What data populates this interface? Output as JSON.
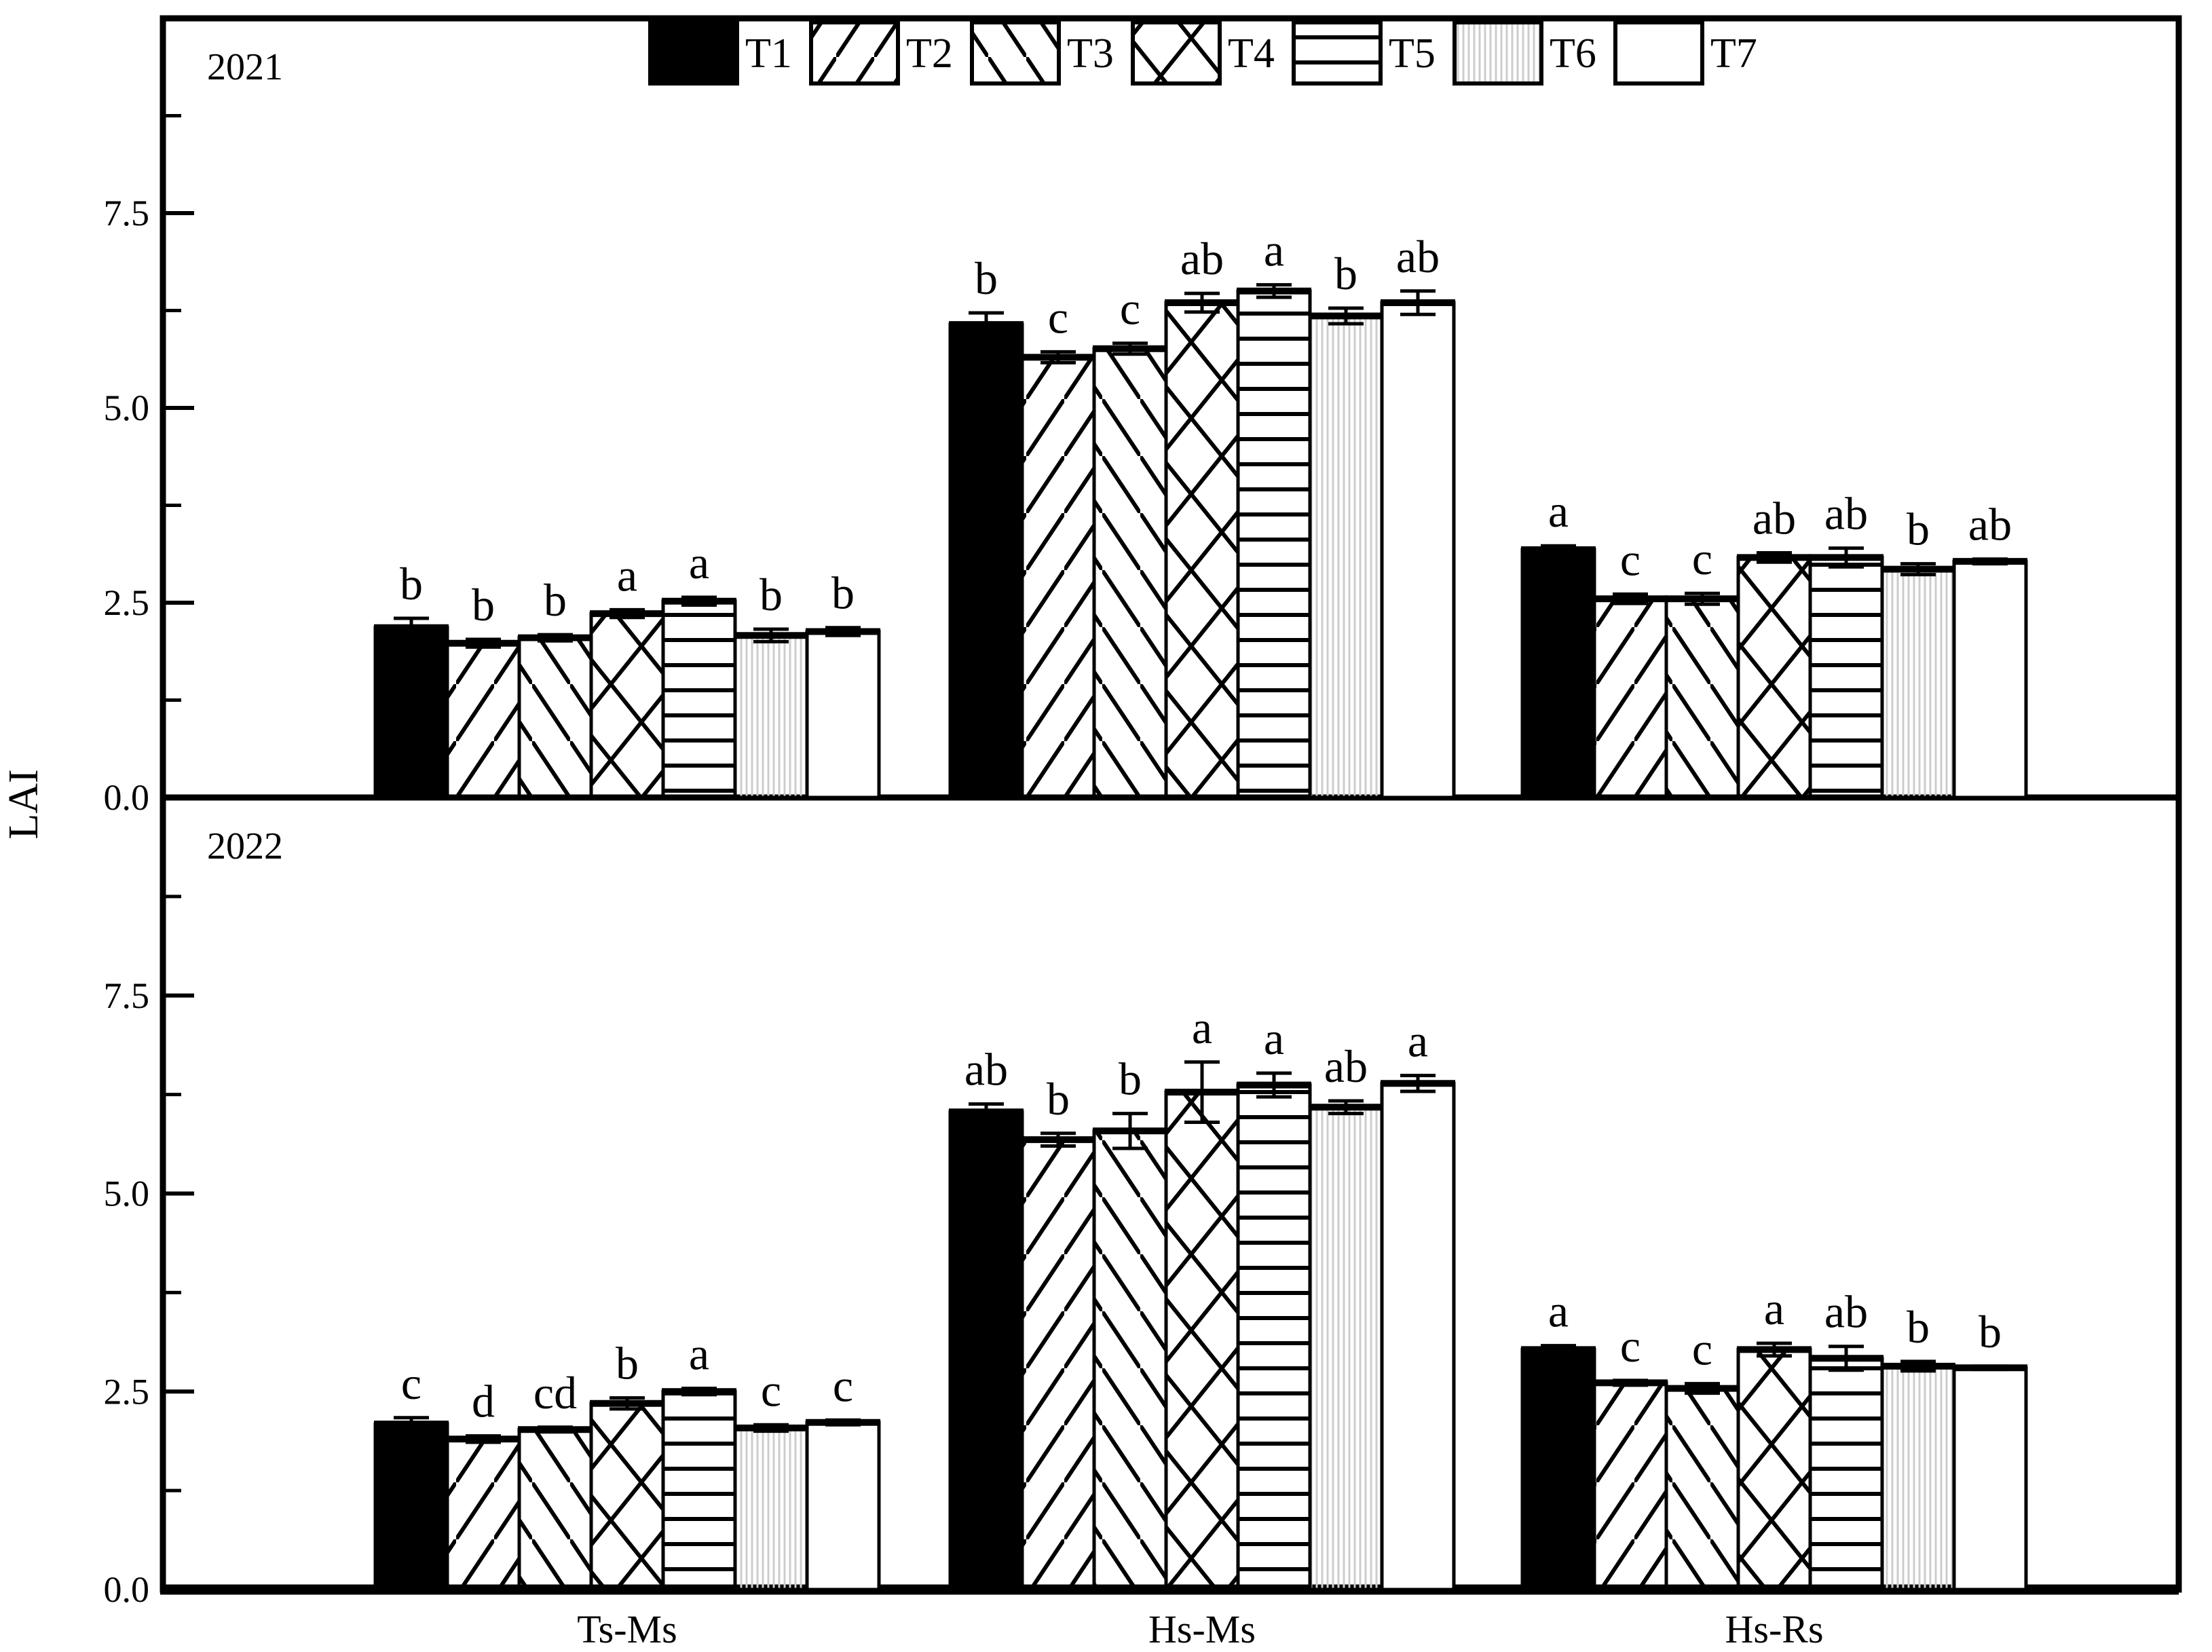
{
  "figure": {
    "ylabel": "LAI",
    "background": "#ffffff",
    "ink_color": "#000000",
    "t6_stripe_color": "#cccccc"
  },
  "chart_data": {
    "type": "bar",
    "title": "",
    "xlabel": "",
    "ylabel": "LAI",
    "ylim": [
      0,
      10
    ],
    "yticks": [
      0,
      2.5,
      5,
      7.5
    ],
    "ytick_labels": [
      "0.0",
      "2.5",
      "5.0",
      "7.5"
    ],
    "minor_yticks": [
      1.25,
      3.75,
      6.25,
      8.75
    ],
    "grid": false,
    "legend_position": "top-center",
    "categories": [
      "Ts-Ms",
      "Hs-Ms",
      "Hs-Rs"
    ],
    "series_names": [
      "T1",
      "T2",
      "T3",
      "T4",
      "T5",
      "T6",
      "T7"
    ],
    "series_patterns": {
      "T1": "solid-black",
      "T2": "diagonal-forward-hatch",
      "T3": "diagonal-backward-hatch",
      "T4": "crosshatch-diamond",
      "T5": "horizontal-lines",
      "T6": "fine-vertical-gray-lines",
      "T7": "white-empty"
    },
    "panels": [
      {
        "year_label": "2021",
        "groups": [
          {
            "category": "Ts-Ms",
            "values": [
              2.18,
              1.98,
              2.05,
              2.36,
              2.52,
              2.08,
              2.13
            ],
            "errors": [
              0.12,
              0.05,
              0.04,
              0.05,
              0.05,
              0.08,
              0.05
            ],
            "letters": [
              "b",
              "b",
              "b",
              "a",
              "a",
              "b",
              "b"
            ]
          },
          {
            "category": "Hs-Ms",
            "values": [
              6.07,
              5.65,
              5.76,
              6.35,
              6.5,
              6.18,
              6.35
            ],
            "errors": [
              0.15,
              0.07,
              0.07,
              0.12,
              0.08,
              0.1,
              0.15
            ],
            "letters": [
              "b",
              "c",
              "c",
              "ab",
              "a",
              "b",
              "ab"
            ]
          },
          {
            "category": "Hs-Rs",
            "values": [
              3.18,
              2.55,
              2.55,
              3.08,
              3.08,
              2.93,
              3.03
            ],
            "errors": [
              0.05,
              0.06,
              0.07,
              0.06,
              0.12,
              0.07,
              0.03
            ],
            "letters": [
              "a",
              "c",
              "c",
              "ab",
              "ab",
              "b",
              "ab"
            ]
          }
        ]
      },
      {
        "year_label": "2022",
        "groups": [
          {
            "category": "Ts-Ms",
            "values": [
              2.09,
              1.9,
              2.02,
              2.35,
              2.5,
              2.04,
              2.11
            ],
            "errors": [
              0.08,
              0.04,
              0.03,
              0.07,
              0.04,
              0.04,
              0.03
            ],
            "letters": [
              "c",
              "d",
              "cd",
              "b",
              "a",
              "c",
              "c"
            ]
          },
          {
            "category": "Hs-Ms",
            "values": [
              6.03,
              5.68,
              5.79,
              6.28,
              6.37,
              6.09,
              6.39
            ],
            "errors": [
              0.1,
              0.08,
              0.22,
              0.38,
              0.15,
              0.08,
              0.1
            ],
            "letters": [
              "ab",
              "b",
              "b",
              "a",
              "a",
              "ab",
              "a"
            ]
          },
          {
            "category": "Hs-Rs",
            "values": [
              3.03,
              2.61,
              2.54,
              3.03,
              2.92,
              2.82,
              2.8
            ],
            "errors": [
              0.05,
              0.03,
              0.06,
              0.08,
              0.15,
              0.06,
              0.02
            ],
            "letters": [
              "a",
              "c",
              "c",
              "a",
              "ab",
              "b",
              "b"
            ]
          }
        ]
      }
    ]
  }
}
